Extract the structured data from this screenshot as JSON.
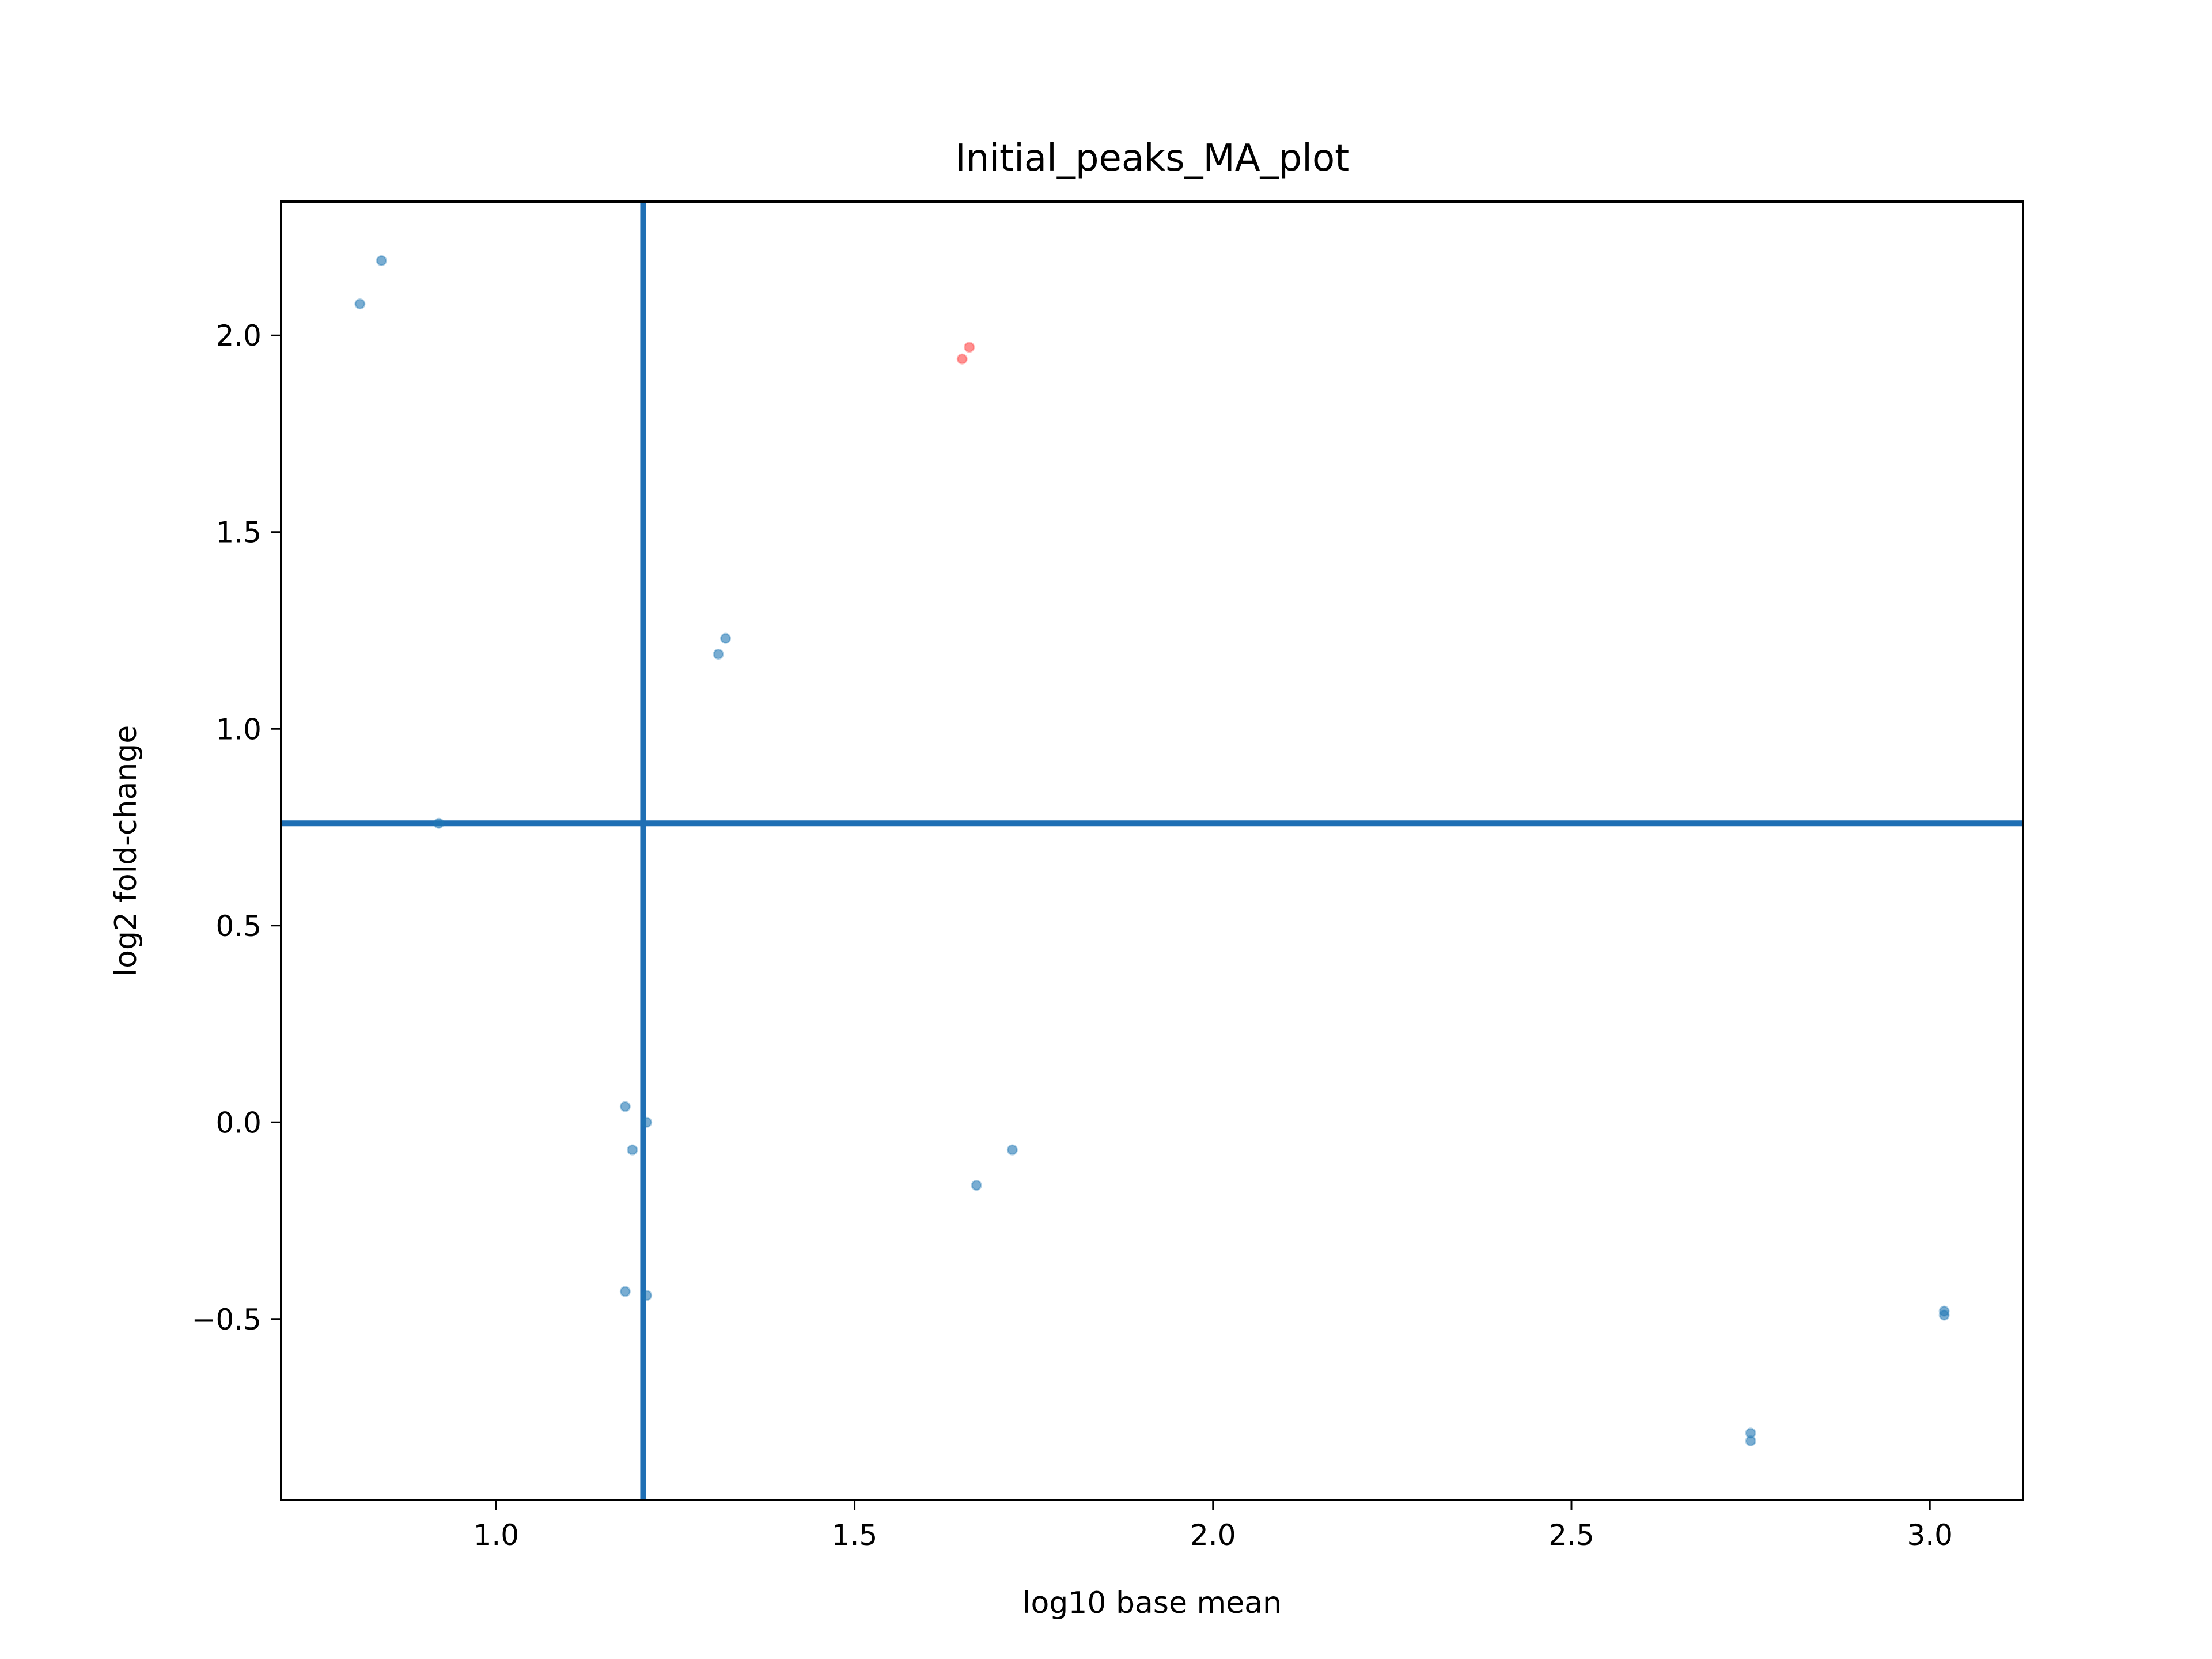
{
  "chart_data": {
    "type": "scatter",
    "title": "Initial_peaks_MA_plot",
    "xlabel": "log10 base mean",
    "ylabel": "log2 fold-change",
    "xlim": [
      0.7,
      3.13
    ],
    "ylim": [
      -0.96,
      2.34
    ],
    "xticks": [
      1.0,
      1.5,
      2.0,
      2.5,
      3.0
    ],
    "xtick_labels": [
      "1.0",
      "1.5",
      "2.0",
      "2.5",
      "3.0"
    ],
    "yticks": [
      -0.5,
      0.0,
      0.5,
      1.0,
      1.5,
      2.0
    ],
    "ytick_labels": [
      "−0.5",
      "0.0",
      "0.5",
      "1.0",
      "1.5",
      "2.0"
    ],
    "grid": false,
    "series": [
      {
        "color": "#1f77b4",
        "points": [
          {
            "x": 0.81,
            "y": 2.08
          },
          {
            "x": 0.84,
            "y": 2.19
          },
          {
            "x": 1.31,
            "y": 1.19
          },
          {
            "x": 1.32,
            "y": 1.23
          },
          {
            "x": 0.92,
            "y": 0.76
          },
          {
            "x": 1.18,
            "y": 0.04
          },
          {
            "x": 1.19,
            "y": -0.07
          },
          {
            "x": 1.21,
            "y": 0.0
          },
          {
            "x": 1.18,
            "y": -0.43
          },
          {
            "x": 1.21,
            "y": -0.44
          },
          {
            "x": 1.67,
            "y": -0.16
          },
          {
            "x": 1.72,
            "y": -0.07
          },
          {
            "x": 2.75,
            "y": -0.79
          },
          {
            "x": 2.75,
            "y": -0.81
          },
          {
            "x": 3.02,
            "y": -0.48
          },
          {
            "x": 3.02,
            "y": -0.49
          }
        ]
      },
      {
        "color": "#ff4444",
        "points": [
          {
            "x": 1.65,
            "y": 1.94
          },
          {
            "x": 1.66,
            "y": 1.97
          }
        ]
      }
    ],
    "reference_lines": {
      "color": "#1f6fb4",
      "vertical_x": 1.205,
      "horizontal_y": 0.76
    }
  }
}
